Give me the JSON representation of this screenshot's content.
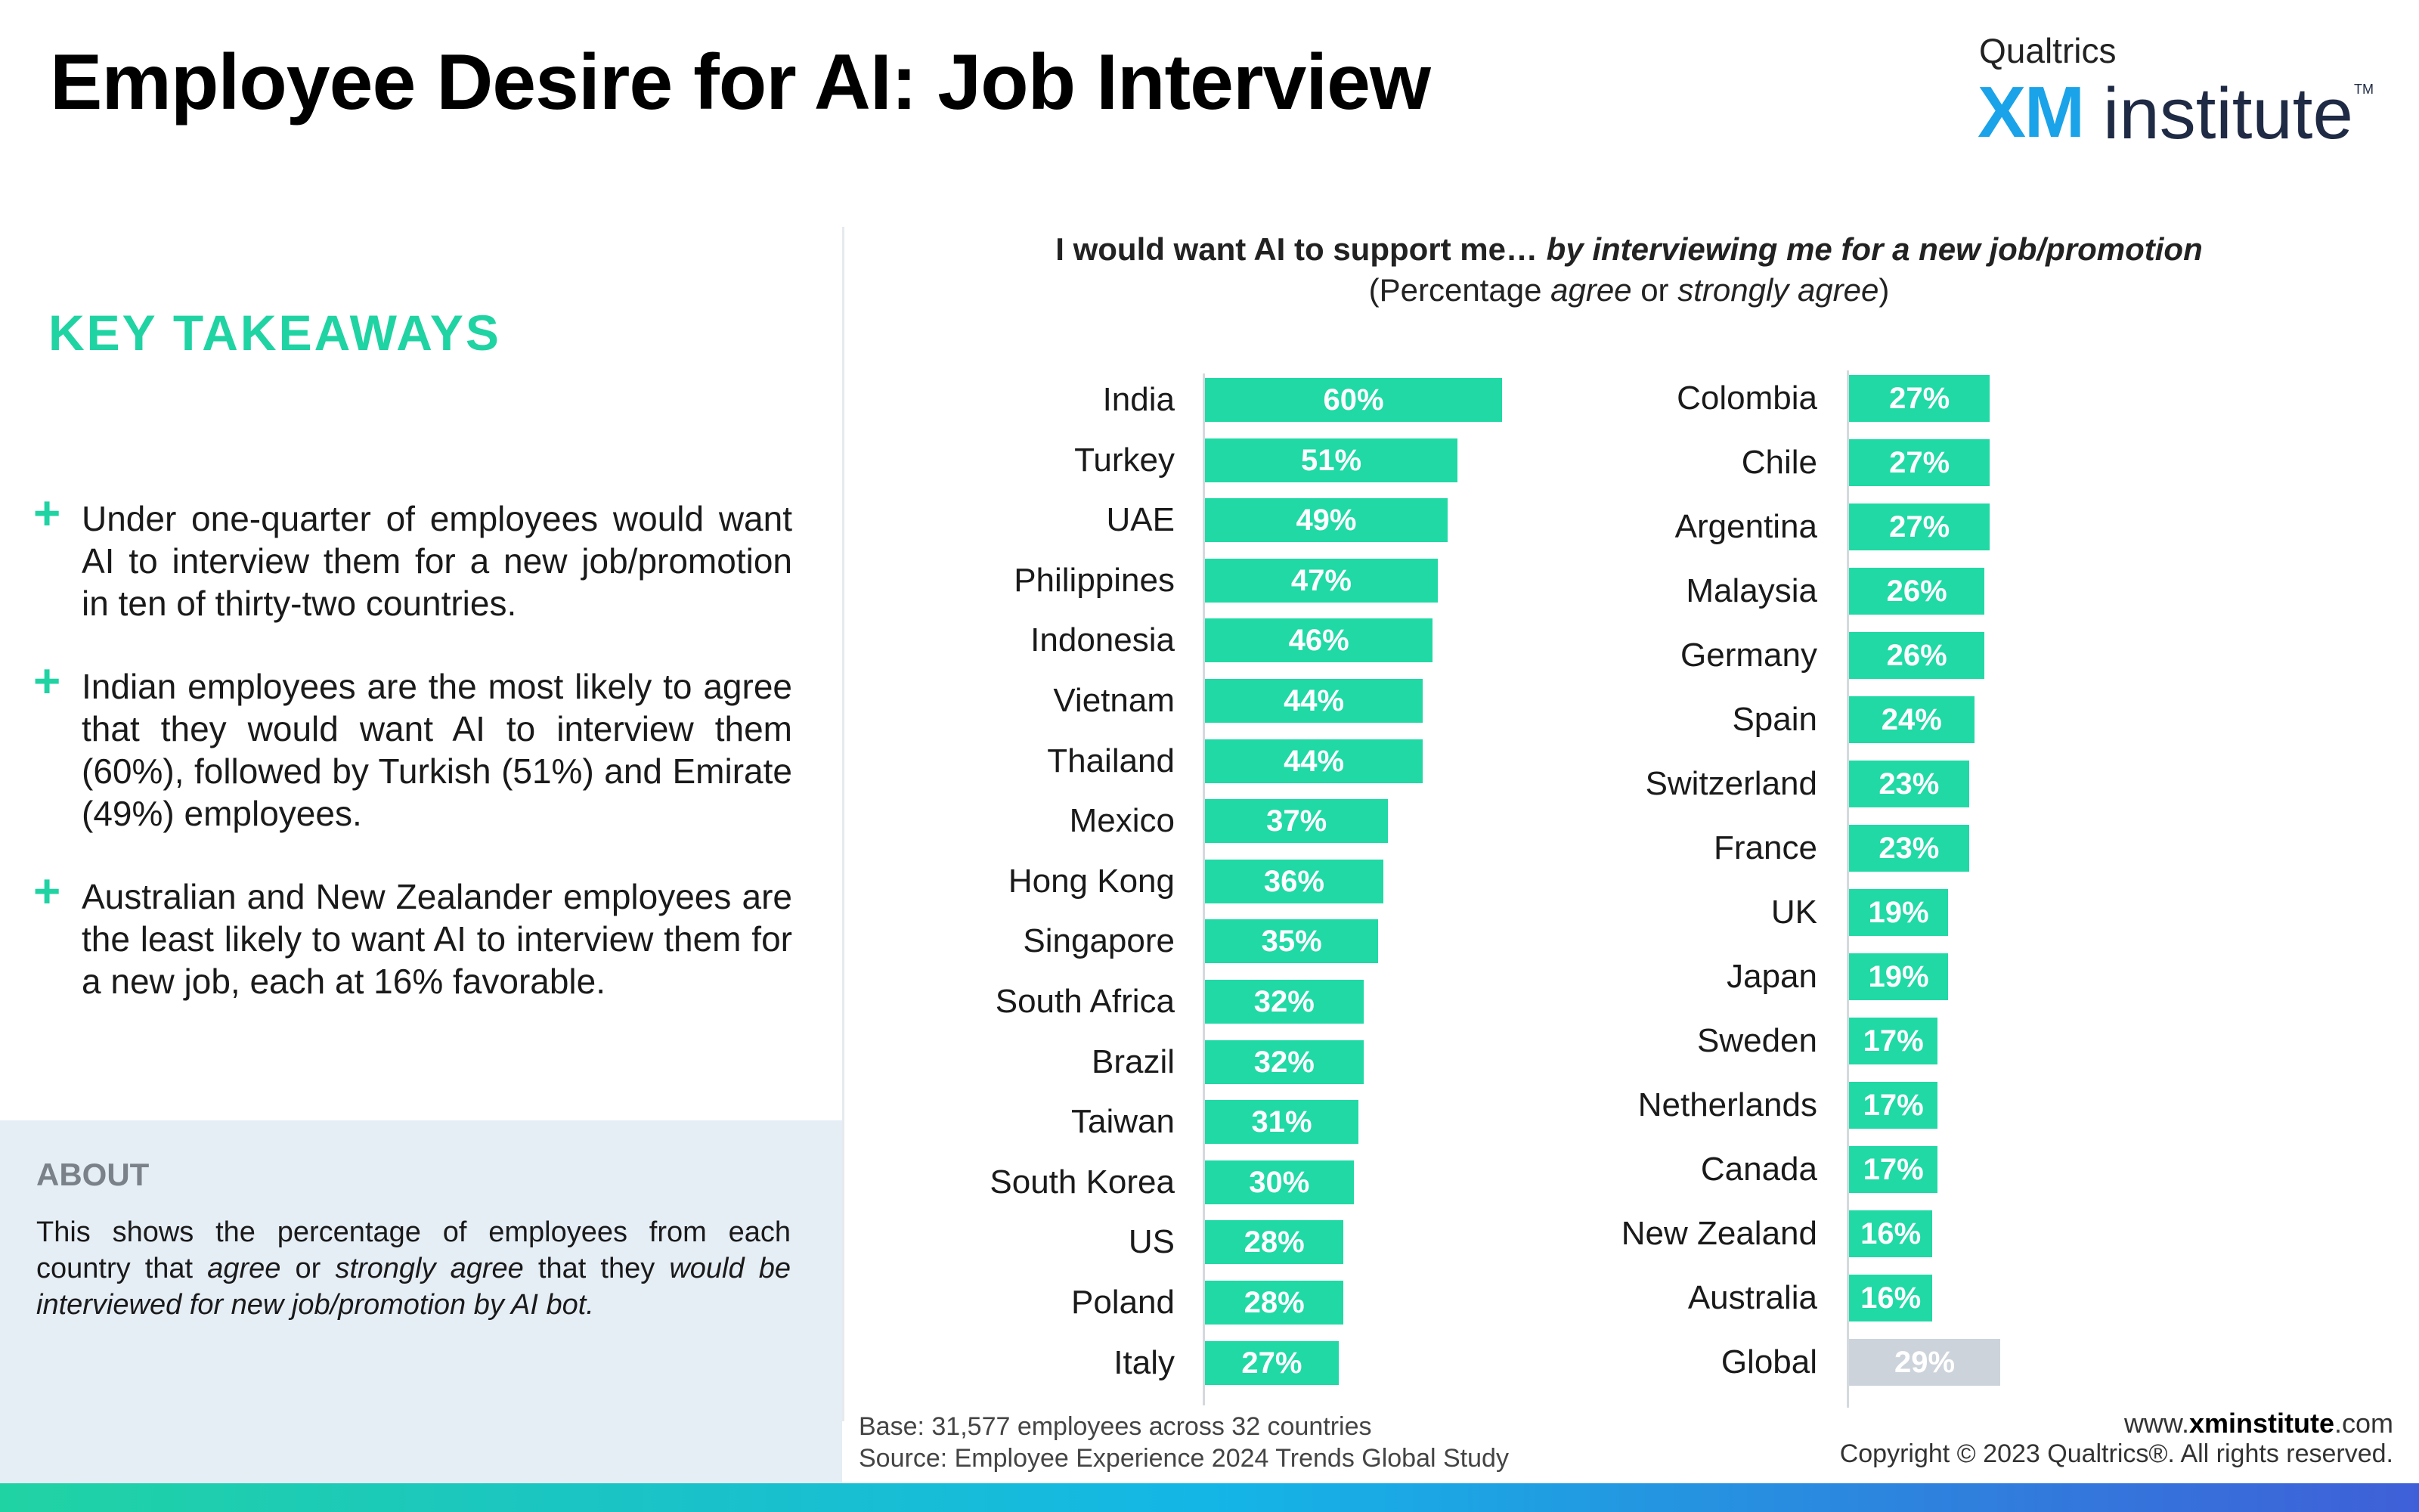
{
  "header": {
    "title": "Employee Desire for AI: Job Interview",
    "logo_top": "Qualtrics",
    "logo_xm": "XM",
    "logo_institute": "institute",
    "logo_tm": "TM"
  },
  "sidebar": {
    "key_takeaways_title": "KEY TAKEAWAYS",
    "takeaways": [
      "Under one-quarter of employees would want AI to interview them for a new job/promotion in ten of thirty-two countries.",
      "Indian employees are the most likely to agree that they would want AI to interview them (60%), followed by Turkish (51%) and Emirate (49%) employees.",
      "Australian and New Zealander employees are the least likely to want AI to interview them for a new job, each at 16% favorable."
    ],
    "plus_symbol": "+",
    "about_title": "ABOUT",
    "about_pre": "This shows the percentage of employees from each country that ",
    "about_em1": "agree",
    "about_mid1": " or ",
    "about_em2": "strongly agree",
    "about_mid2": " that they ",
    "about_em3": "would be interviewed for new job/promotion by AI bot."
  },
  "colors": {
    "accent": "#20d3a3",
    "bar": "#20d9a5",
    "global_bar": "#cdd3da",
    "about_bg": "#e5edf5"
  },
  "chart_data": {
    "type": "bar",
    "orientation": "horizontal",
    "title_plain": "I would want AI to support me… ",
    "title_italic": "by interviewing me for a new job/promotion",
    "subtitle_pre": "(Percentage ",
    "subtitle_em1": "agree",
    "subtitle_mid": " or ",
    "subtitle_em2": "strongly agree",
    "subtitle_post": ")",
    "unit": "%",
    "xlim": [
      0,
      100
    ],
    "columns": [
      {
        "categories": [
          "India",
          "Turkey",
          "UAE",
          "Philippines",
          "Indonesia",
          "Vietnam",
          "Thailand",
          "Mexico",
          "Hong Kong",
          "Singapore",
          "South Africa",
          "Brazil",
          "Taiwan",
          "South Korea",
          "US",
          "Poland",
          "Italy"
        ],
        "values": [
          60,
          51,
          49,
          47,
          46,
          44,
          44,
          37,
          36,
          35,
          32,
          32,
          31,
          30,
          28,
          28,
          27
        ],
        "labels": [
          "60%",
          "51%",
          "49%",
          "47%",
          "46%",
          "44%",
          "44%",
          "37%",
          "36%",
          "35%",
          "32%",
          "32%",
          "31%",
          "30%",
          "28%",
          "28%",
          "27%"
        ]
      },
      {
        "categories": [
          "Colombia",
          "Chile",
          "Argentina",
          "Malaysia",
          "Germany",
          "Spain",
          "Switzerland",
          "France",
          "UK",
          "Japan",
          "Sweden",
          "Netherlands",
          "Canada",
          "New Zealand",
          "Australia",
          "Global"
        ],
        "values": [
          27,
          27,
          27,
          26,
          26,
          24,
          23,
          23,
          19,
          19,
          17,
          17,
          17,
          16,
          16,
          29
        ],
        "labels": [
          "27%",
          "27%",
          "27%",
          "26%",
          "26%",
          "24%",
          "23%",
          "23%",
          "19%",
          "19%",
          "17%",
          "17%",
          "17%",
          "16%",
          "16%",
          "29%"
        ],
        "highlight_last": true
      }
    ]
  },
  "footer": {
    "base": "Base: 31,577 employees across 32 countries",
    "source": "Source: Employee Experience 2024 Trends Global Study",
    "url_pre": "www.",
    "url_bold": "xminstitute",
    "url_post": ".com",
    "copyright": "Copyright © 2023 Qualtrics®. All rights reserved."
  }
}
